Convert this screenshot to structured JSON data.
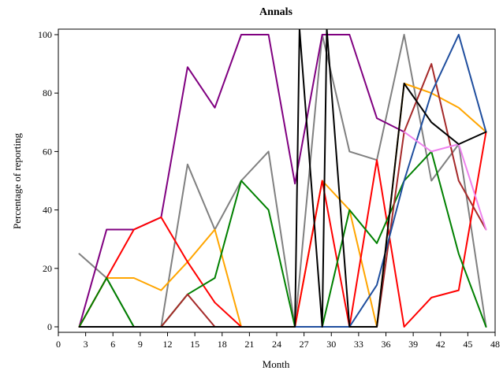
{
  "chart_data": {
    "type": "line",
    "title": "Annals",
    "xlabel": "Month",
    "ylabel": "Percentage of reporting",
    "xlim": [
      0,
      48
    ],
    "ylim": [
      0,
      100
    ],
    "xticks": [
      0,
      3,
      6,
      9,
      12,
      15,
      18,
      21,
      24,
      27,
      30,
      33,
      36,
      39,
      42,
      45,
      48
    ],
    "yticks": [
      0,
      20,
      40,
      60,
      80,
      100
    ],
    "grid": false,
    "legend": "none",
    "series": [
      {
        "color": "#808080",
        "x": [
          2.3,
          5.3,
          8.3,
          11.3,
          14.2,
          17.2,
          20.1,
          23.1,
          26,
          29,
          32,
          35,
          38,
          41,
          44,
          47
        ],
        "y": [
          25,
          16.7,
          0,
          0,
          55.6,
          33.3,
          50,
          60,
          0,
          100,
          60,
          57.1,
          100,
          50,
          62.5,
          0
        ]
      },
      {
        "color": "#800080",
        "x": [
          2.3,
          5.3,
          8.3,
          11.3,
          14.2,
          17.2,
          20.1,
          23.1,
          26,
          29,
          32,
          35,
          38
        ],
        "y": [
          0,
          33.3,
          33.3,
          37.5,
          88.9,
          75,
          100,
          100,
          49,
          100,
          100,
          71.4,
          66.7
        ]
      },
      {
        "color": "#ffa500",
        "x": [
          2.3,
          5.3,
          8.3,
          11.3,
          14.2,
          17.2,
          20.1,
          23.1,
          26,
          29,
          32,
          35,
          38,
          41,
          44,
          47
        ],
        "y": [
          0,
          16.7,
          16.7,
          12.5,
          22.2,
          33.3,
          0,
          0,
          0,
          50,
          40,
          0,
          83.3,
          80,
          75,
          66.7
        ]
      },
      {
        "color": "#ff0000",
        "x": [
          2.3,
          5.3,
          8.3,
          11.3,
          14.2,
          17.2,
          20.1,
          23.1,
          26,
          29,
          32,
          35,
          38,
          41,
          44,
          47
        ],
        "y": [
          0,
          16.7,
          33.3,
          37.5,
          22.2,
          8.3,
          0,
          0,
          0,
          50,
          0,
          57.1,
          0,
          10,
          12.5,
          66.7
        ]
      },
      {
        "color": "#008000",
        "x": [
          2.3,
          5.3,
          8.3,
          11.3,
          14.2,
          17.2,
          20.1,
          23.1,
          26,
          29,
          32,
          35,
          38,
          41,
          44,
          47
        ],
        "y": [
          0,
          16.7,
          0,
          0,
          11.1,
          16.7,
          50,
          40,
          0,
          0,
          40,
          28.6,
          50,
          60,
          25,
          0
        ]
      },
      {
        "color": "#a52a2a",
        "x": [
          2.3,
          5.3,
          8.3,
          11.3,
          14.2,
          17.2,
          20.1,
          23.1,
          26,
          29,
          32,
          35,
          38,
          41,
          44,
          47
        ],
        "y": [
          0,
          0,
          0,
          0,
          11.1,
          0,
          0,
          0,
          0,
          0,
          0,
          0,
          66.7,
          90,
          50,
          33.3
        ]
      },
      {
        "color": "#1f4e9e",
        "x": [
          26,
          29,
          32,
          35,
          38,
          41,
          44,
          47
        ],
        "y": [
          0,
          0,
          0,
          14.3,
          50,
          80,
          100,
          66.7
        ]
      },
      {
        "color": "#ee82ee",
        "x": [
          38,
          41,
          44,
          47
        ],
        "y": [
          66.7,
          60,
          62.5,
          33.3
        ]
      },
      {
        "color": "#000000",
        "x": [
          2.3,
          5.3,
          8.3,
          11.3,
          14.2,
          17.2,
          20.1,
          23.1,
          26,
          26.5,
          29,
          29.5,
          32,
          35,
          38,
          41,
          44,
          47
        ],
        "y": [
          0,
          0,
          0,
          0,
          0,
          0,
          0,
          0,
          0,
          102,
          0,
          102,
          0,
          0,
          83.3,
          70,
          62.5,
          66.7
        ]
      }
    ]
  }
}
